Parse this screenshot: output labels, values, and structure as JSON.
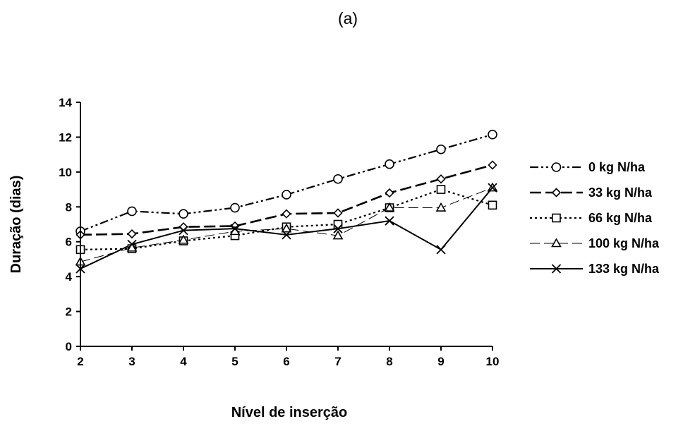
{
  "chart_data": {
    "type": "line",
    "title": "(a)",
    "xlabel": "Nível de inserção",
    "ylabel": "Duração (dias)",
    "x": [
      2,
      3,
      4,
      5,
      6,
      7,
      8,
      9,
      10
    ],
    "xlim": [
      2,
      10
    ],
    "ylim": [
      0,
      14
    ],
    "yticks": [
      0,
      2,
      4,
      6,
      8,
      10,
      12,
      14
    ],
    "grid": false,
    "legend_position": "right",
    "series": [
      {
        "name": "0 kg N/ha",
        "marker": "circle",
        "line_style": "dash-dot-dot",
        "color": "#000000",
        "values": [
          6.6,
          7.75,
          7.6,
          7.95,
          8.7,
          9.6,
          10.45,
          11.3,
          12.15
        ]
      },
      {
        "name": "33 kg N/ha",
        "marker": "diamond",
        "line_style": "long-dash",
        "color": "#000000",
        "values": [
          6.4,
          6.45,
          6.85,
          6.9,
          7.6,
          7.65,
          8.8,
          9.6,
          10.4
        ]
      },
      {
        "name": "66 kg N/ha",
        "marker": "square",
        "line_style": "dotted",
        "color": "#000000",
        "values": [
          5.55,
          5.6,
          6.05,
          6.35,
          6.85,
          7.0,
          7.95,
          9.0,
          8.1
        ]
      },
      {
        "name": "100 kg N/ha",
        "marker": "triangle",
        "line_style": "thin-dash",
        "color": "#000000",
        "values": [
          4.85,
          5.65,
          6.1,
          6.6,
          6.75,
          6.35,
          7.95,
          7.95,
          9.1
        ]
      },
      {
        "name": "133 kg N/ha",
        "marker": "x",
        "line_style": "solid",
        "color": "#000000",
        "values": [
          4.45,
          5.85,
          6.65,
          6.75,
          6.4,
          6.75,
          7.2,
          5.55,
          9.1
        ]
      }
    ]
  }
}
